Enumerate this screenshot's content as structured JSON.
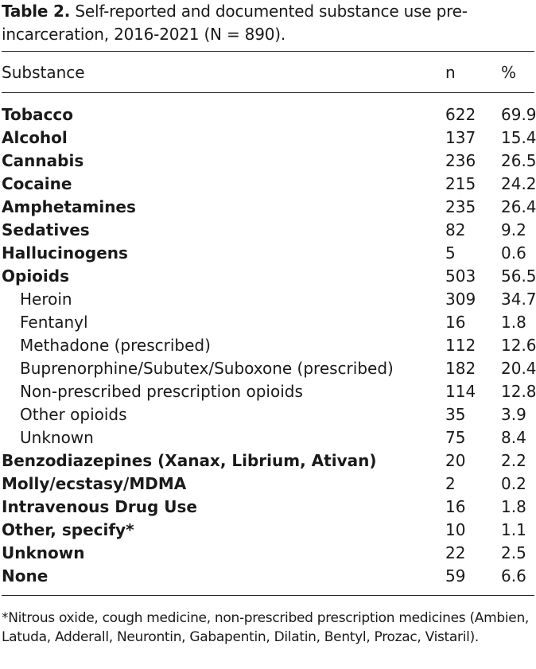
{
  "caption": {
    "label": "Table 2.",
    "text": "Self-reported and documented substance use pre-incarceration, 2016-2021 (N = 890)."
  },
  "table": {
    "headers": {
      "substance": "Substance",
      "n": "n",
      "pct": "%"
    },
    "rows": [
      {
        "substance": "Tobacco",
        "n": "622",
        "pct": "69.9",
        "bold": true,
        "indent": false
      },
      {
        "substance": "Alcohol",
        "n": "137",
        "pct": "15.4",
        "bold": true,
        "indent": false
      },
      {
        "substance": "Cannabis",
        "n": "236",
        "pct": "26.5",
        "bold": true,
        "indent": false
      },
      {
        "substance": "Cocaine",
        "n": "215",
        "pct": "24.2",
        "bold": true,
        "indent": false
      },
      {
        "substance": "Amphetamines",
        "n": "235",
        "pct": "26.4",
        "bold": true,
        "indent": false
      },
      {
        "substance": "Sedatives",
        "n": "82",
        "pct": "9.2",
        "bold": true,
        "indent": false
      },
      {
        "substance": "Hallucinogens",
        "n": "5",
        "pct": "0.6",
        "bold": true,
        "indent": false
      },
      {
        "substance": "Opioids",
        "n": "503",
        "pct": "56.5",
        "bold": true,
        "indent": false
      },
      {
        "substance": "Heroin",
        "n": "309",
        "pct": "34.7",
        "bold": false,
        "indent": true
      },
      {
        "substance": "Fentanyl",
        "n": "16",
        "pct": "1.8",
        "bold": false,
        "indent": true
      },
      {
        "substance": "Methadone (prescribed)",
        "n": "112",
        "pct": "12.6",
        "bold": false,
        "indent": true
      },
      {
        "substance": "Buprenorphine/Subutex/Suboxone (prescribed)",
        "n": "182",
        "pct": "20.4",
        "bold": false,
        "indent": true
      },
      {
        "substance": "Non-prescribed prescription opioids",
        "n": "114",
        "pct": "12.8",
        "bold": false,
        "indent": true
      },
      {
        "substance": "Other opioids",
        "n": "35",
        "pct": "3.9",
        "bold": false,
        "indent": true
      },
      {
        "substance": "Unknown",
        "n": "75",
        "pct": "8.4",
        "bold": false,
        "indent": true
      },
      {
        "substance": "Benzodiazepines (Xanax, Librium, Ativan)",
        "n": "20",
        "pct": "2.2",
        "bold": true,
        "indent": false
      },
      {
        "substance": "Molly/ecstasy/MDMA",
        "n": "2",
        "pct": "0.2",
        "bold": true,
        "indent": false
      },
      {
        "substance": "Intravenous Drug Use",
        "n": "16",
        "pct": "1.8",
        "bold": true,
        "indent": false
      },
      {
        "substance": "Other, specify*",
        "n": "10",
        "pct": "1.1",
        "bold": true,
        "indent": false
      },
      {
        "substance": "Unknown",
        "n": "22",
        "pct": "2.5",
        "bold": true,
        "indent": false
      },
      {
        "substance": "None",
        "n": "59",
        "pct": "6.6",
        "bold": true,
        "indent": false
      }
    ]
  },
  "footnote": "*Nitrous oxide, cough medicine, non-prescribed prescription medicines (Ambien, Latuda, Adderall, Neurontin, Gabapentin, Dilatin, Bentyl, Prozac, Vistaril)."
}
